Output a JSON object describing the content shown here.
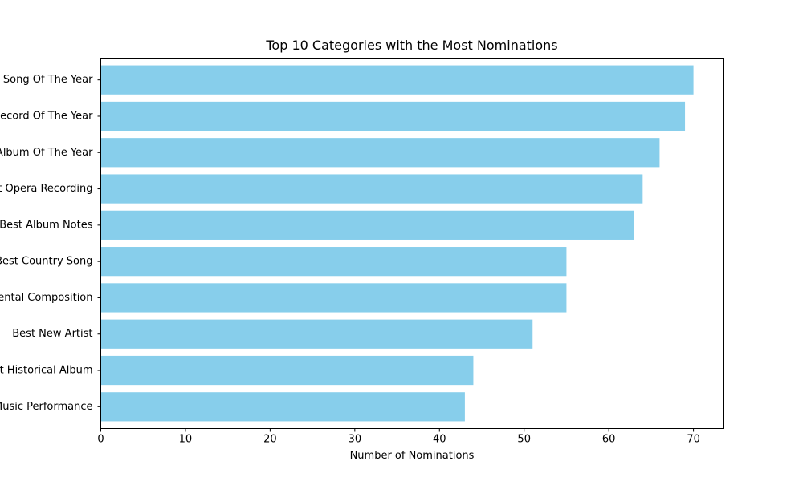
{
  "chart_data": {
    "type": "bar",
    "orientation": "horizontal",
    "title": "Top 10 Categories with the Most Nominations",
    "xlabel": "Number of Nominations",
    "ylabel": "",
    "categories": [
      "Song Of The Year",
      "Record Of The Year",
      "Album Of The Year",
      "Best Opera Recording",
      "Best Album Notes",
      "Best Country Song",
      "Best Instrumental Composition",
      "Best New Artist",
      "Best Historical Album",
      "Best Chamber Music Performance"
    ],
    "values": [
      70,
      69,
      66,
      64,
      63,
      55,
      55,
      51,
      44,
      43
    ],
    "xlim": [
      0,
      73.5
    ],
    "xticks": [
      0,
      10,
      20,
      30,
      40,
      50,
      60,
      70
    ],
    "grid": false,
    "bar_color": "#87CEEB"
  }
}
